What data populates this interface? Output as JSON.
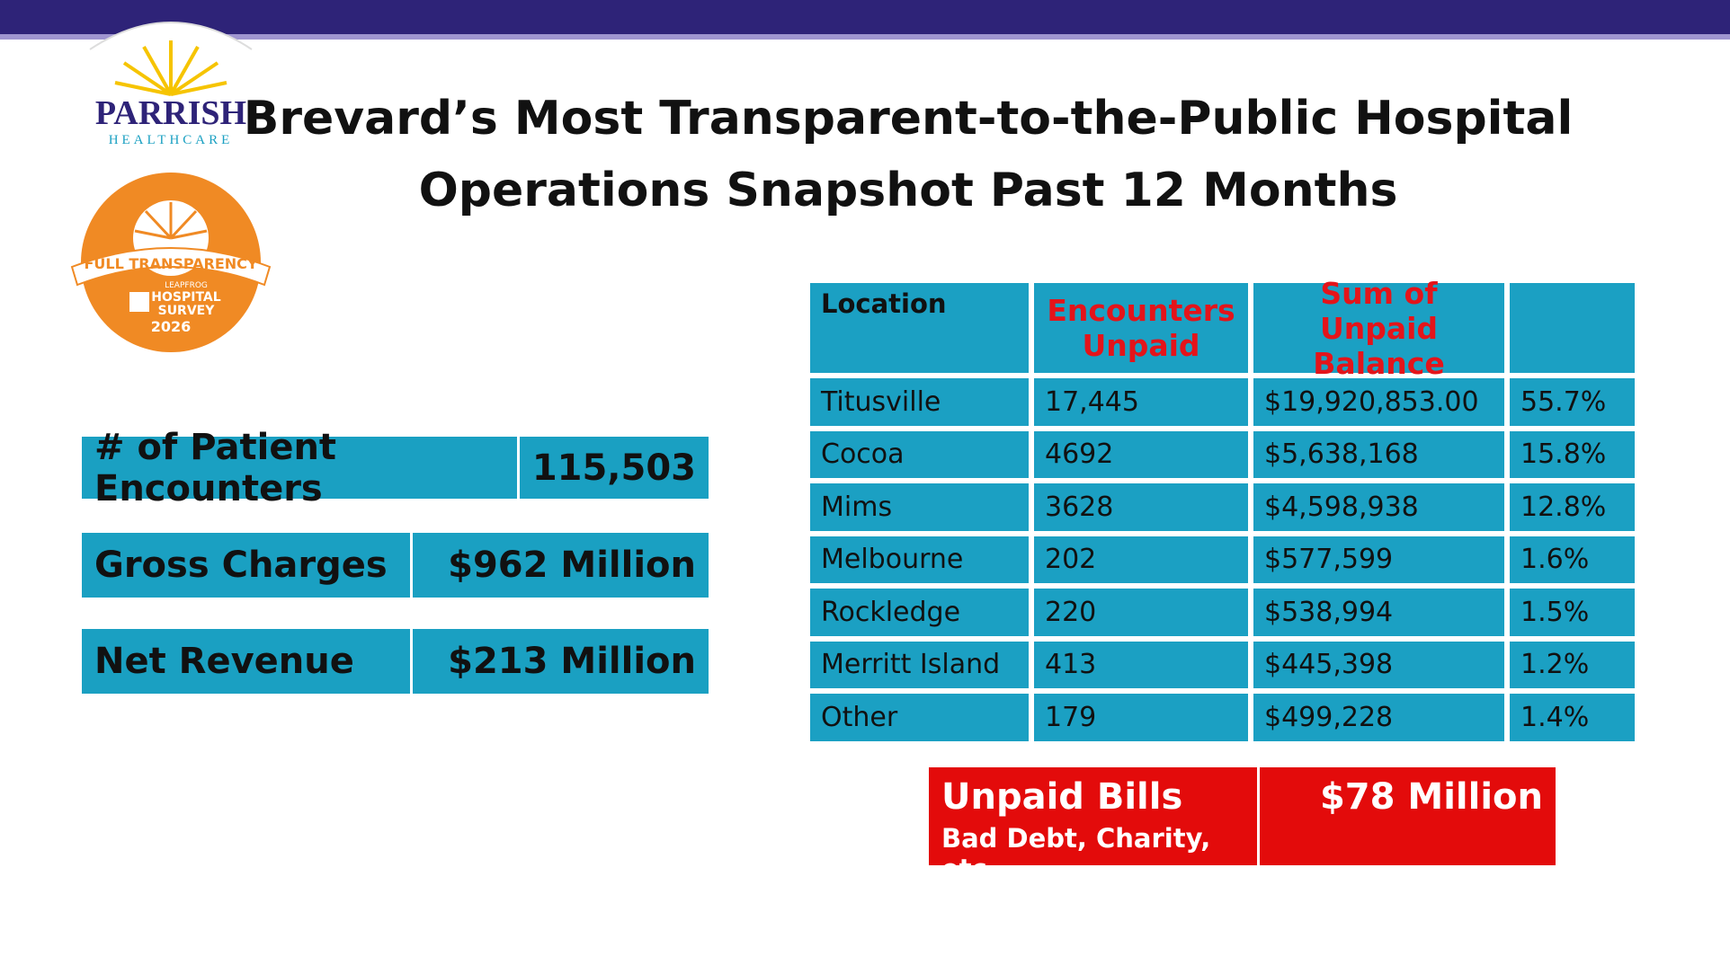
{
  "logo": {
    "name": "PARRISH",
    "subtitle": "HEALTHCARE"
  },
  "badge": {
    "banner": "FULL TRANSPARENCY",
    "org": "LEAPFROG",
    "line1": "HOSPITAL",
    "line2": "SURVEY",
    "year": "2026"
  },
  "header": {
    "title_line1": "Brevard’s Most Transparent-to-the-Public Hospital",
    "title_line2": "Operations Snapshot  Past 12 Months"
  },
  "metrics": [
    {
      "label": "# of Patient Encounters",
      "value": "115,503"
    },
    {
      "label": "Gross Charges",
      "value": "$962 Million"
    },
    {
      "label": "Net Revenue",
      "value": "$213 Million"
    }
  ],
  "table": {
    "columns": [
      "Location",
      "Encounters Unpaid",
      "Sum of Unpaid Balance"
    ],
    "rows": [
      [
        "Titusville",
        "17,445",
        "$19,920,853.00",
        "55.7%"
      ],
      [
        "Cocoa",
        "4692",
        "$5,638,168",
        "15.8%"
      ],
      [
        "Mims",
        "3628",
        "$4,598,938",
        "12.8%"
      ],
      [
        "Melbourne",
        "202",
        "$577,599",
        "1.6%"
      ],
      [
        "Rockledge",
        "220",
        "$538,994",
        "1.5%"
      ],
      [
        "Merritt Island",
        "413",
        "$445,398",
        "1.2%"
      ],
      [
        "Other",
        "179",
        "$499,228",
        "1.4%"
      ]
    ]
  },
  "unpaid": {
    "label": "Unpaid Bills",
    "sublabel": "Bad Debt, Charity, etc.",
    "value": "$78 Million"
  }
}
